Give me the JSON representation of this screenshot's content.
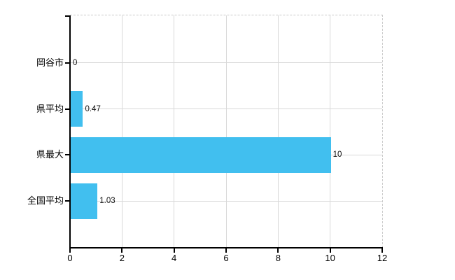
{
  "chart_data": {
    "type": "bar",
    "orientation": "horizontal",
    "categories": [
      "岡谷市",
      "県平均",
      "県最大",
      "全国平均"
    ],
    "values": [
      0,
      0.47,
      10,
      1.03
    ],
    "value_labels": [
      "0",
      "0.47",
      "10",
      "1.03"
    ],
    "x_ticks": [
      0,
      2,
      4,
      6,
      8,
      10,
      12
    ],
    "xlim": [
      0,
      12
    ],
    "grid": true,
    "legend": false,
    "colors": {
      "bar": "#41bfef",
      "gridline": "#d9d9d9",
      "plot_border_dashed": "#c9c9c9",
      "axis": "#000000",
      "text": "#000000",
      "background": "#ffffff"
    }
  }
}
